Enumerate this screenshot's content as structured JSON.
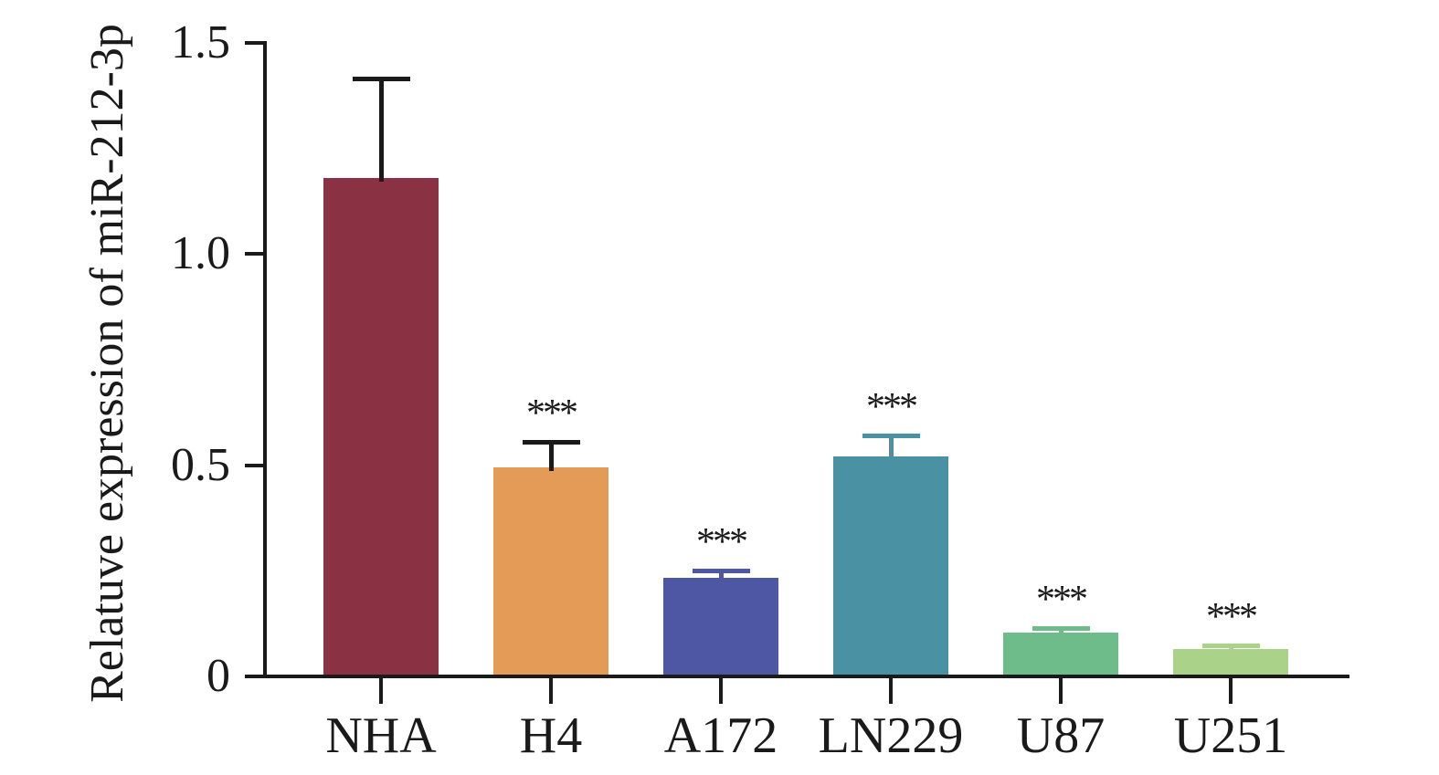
{
  "chart_data": {
    "type": "bar",
    "title": "",
    "ylabel": "Relatuve expression of miR-212-3p",
    "xlabel": "",
    "categories": [
      "NHA",
      "H4",
      "A172",
      "LN229",
      "U87",
      "U251"
    ],
    "values": [
      1.18,
      0.495,
      0.233,
      0.52,
      0.103,
      0.065
    ],
    "errors_upper": [
      0.24,
      0.065,
      0.021,
      0.054,
      0.015,
      0.013
    ],
    "significance": [
      "",
      "***",
      "***",
      "***",
      "***",
      "***"
    ],
    "bar_colors": [
      "#8a3243",
      "#e49b58",
      "#4d57a3",
      "#4a91a4",
      "#6fbc8b",
      "#abd289"
    ],
    "error_bar_colors": [
      "#1a1a1a",
      "#1a1a1a",
      "#4d57a3",
      "#4a91a4",
      "#6fbc8b",
      "#abd289"
    ],
    "axis_color": "#1a1a1a",
    "background": "#ffffff",
    "ylim": [
      0,
      1.5
    ],
    "yticks": [
      0,
      0.5,
      1.0,
      1.5
    ],
    "ytick_labels": [
      "0",
      "0.5",
      "1.0",
      "1.5"
    ],
    "grid": false,
    "legend": null
  }
}
